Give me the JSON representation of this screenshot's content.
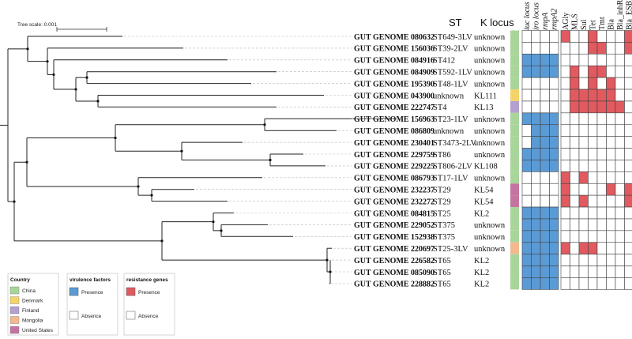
{
  "tree_scale": {
    "label": "Tree scale: 0.001"
  },
  "headers": {
    "st": "ST",
    "k_locus": "K locus"
  },
  "virulence_columns": [
    "iuc locus",
    "iro locus",
    "rmpA",
    "rmpA2"
  ],
  "resistance_columns": [
    "AGly",
    "MLS",
    "Sul",
    "Tet",
    "Tmt",
    "Bla",
    "Bla_inhR",
    "Bla_ESBL"
  ],
  "colors": {
    "China": "#a8d59a",
    "Denmark": "#f5d36b",
    "Finland": "#b4a0cf",
    "Mongolia": "#f3b98e",
    "United States": "#c474a0",
    "virulence_presence": "#5b9bd5",
    "resistance_presence": "#e05a5f",
    "absence": "#ffffff"
  },
  "genomes": [
    {
      "name": "GUT GENOME 080632",
      "st": "ST649-3LV",
      "k": "unknown",
      "country": "China",
      "vir": [
        0,
        0,
        0,
        0
      ],
      "res": [
        1,
        0,
        0,
        1,
        0,
        0,
        0,
        1
      ]
    },
    {
      "name": "GUT GENOME 156036",
      "st": "ST39-2LV",
      "k": "unknown",
      "country": "China",
      "vir": [
        0,
        0,
        0,
        0
      ],
      "res": [
        0,
        0,
        0,
        1,
        1,
        0,
        0,
        1
      ]
    },
    {
      "name": "GUT GENOME 084916",
      "st": "ST412",
      "k": "unknown",
      "country": "China",
      "vir": [
        1,
        1,
        1,
        1
      ],
      "res": [
        0,
        0,
        0,
        0,
        0,
        0,
        0,
        0
      ]
    },
    {
      "name": "GUT GENOME 084909",
      "st": "ST592-1LV",
      "k": "unknown",
      "country": "China",
      "vir": [
        1,
        1,
        1,
        1
      ],
      "res": [
        0,
        1,
        0,
        1,
        1,
        0,
        0,
        0
      ]
    },
    {
      "name": "GUT GENOME 195390",
      "st": "ST48-1LV",
      "k": "unknown",
      "country": "China",
      "vir": [
        0,
        0,
        0,
        0
      ],
      "res": [
        0,
        1,
        0,
        1,
        0,
        1,
        0,
        0
      ]
    },
    {
      "name": "GUT GENOME 043900",
      "st": "unknown",
      "k": "KL111",
      "country": "Denmark",
      "vir": [
        0,
        0,
        0,
        0
      ],
      "res": [
        0,
        1,
        1,
        1,
        1,
        1,
        0,
        0
      ]
    },
    {
      "name": "GUT GENOME 222747",
      "st": "ST4",
      "k": "KL13",
      "country": "Finland",
      "vir": [
        0,
        0,
        0,
        0
      ],
      "res": [
        0,
        1,
        1,
        1,
        1,
        1,
        1,
        0
      ]
    },
    {
      "name": "GUT GENOME 156963",
      "st": "ST23-1LV",
      "k": "unknown",
      "country": "China",
      "vir": [
        1,
        1,
        1,
        1
      ],
      "res": [
        0,
        0,
        0,
        0,
        0,
        0,
        0,
        0
      ]
    },
    {
      "name": "GUT GENOME 086809",
      "st": "unknown",
      "k": "unknown",
      "country": "China",
      "vir": [
        0,
        1,
        1,
        1
      ],
      "res": [
        0,
        0,
        0,
        0,
        0,
        0,
        0,
        0
      ]
    },
    {
      "name": "GUT GENOME 230401",
      "st": "ST3473-2LV",
      "k": "unknown",
      "country": "China",
      "vir": [
        0,
        1,
        1,
        1
      ],
      "res": [
        0,
        0,
        0,
        0,
        0,
        0,
        0,
        0
      ]
    },
    {
      "name": "GUT GENOME 229759",
      "st": "ST86",
      "k": "unknown",
      "country": "China",
      "vir": [
        1,
        1,
        1,
        1
      ],
      "res": [
        0,
        0,
        0,
        0,
        0,
        0,
        0,
        0
      ]
    },
    {
      "name": "GUT GENOME 229225",
      "st": "ST806-2LV",
      "k": "KL108",
      "country": "China",
      "vir": [
        1,
        1,
        1,
        1
      ],
      "res": [
        0,
        0,
        0,
        0,
        0,
        0,
        0,
        0
      ]
    },
    {
      "name": "GUT GENOME 086793",
      "st": "ST17-1LV",
      "k": "unknown",
      "country": "China",
      "vir": [
        0,
        0,
        0,
        0
      ],
      "res": [
        1,
        0,
        1,
        0,
        0,
        0,
        0,
        0
      ]
    },
    {
      "name": "GUT GENOME 232237",
      "st": "ST29",
      "k": "KL54",
      "country": "United States",
      "vir": [
        0,
        0,
        0,
        0
      ],
      "res": [
        1,
        0,
        0,
        0,
        0,
        1,
        0,
        1
      ]
    },
    {
      "name": "GUT GENOME 232272",
      "st": "ST29",
      "k": "KL54",
      "country": "United States",
      "vir": [
        0,
        0,
        0,
        0
      ],
      "res": [
        1,
        0,
        1,
        0,
        0,
        0,
        0,
        1
      ]
    },
    {
      "name": "GUT GENOME 084815",
      "st": "ST25",
      "k": "KL2",
      "country": "China",
      "vir": [
        1,
        1,
        1,
        1
      ],
      "res": [
        0,
        0,
        0,
        0,
        0,
        0,
        0,
        0
      ]
    },
    {
      "name": "GUT GENOME 229052",
      "st": "ST375",
      "k": "unknown",
      "country": "China",
      "vir": [
        1,
        1,
        1,
        1
      ],
      "res": [
        0,
        0,
        0,
        0,
        0,
        0,
        0,
        0
      ]
    },
    {
      "name": "GUT GENOME 152938",
      "st": "ST375",
      "k": "unknown",
      "country": "China",
      "vir": [
        1,
        1,
        1,
        1
      ],
      "res": [
        0,
        0,
        0,
        0,
        0,
        0,
        0,
        0
      ]
    },
    {
      "name": "GUT GENOME 220697",
      "st": "ST25-3LV",
      "k": "unknown",
      "country": "Mongolia",
      "vir": [
        1,
        1,
        1,
        1
      ],
      "res": [
        1,
        0,
        1,
        1,
        0,
        0,
        0,
        0
      ]
    },
    {
      "name": "GUT GENOME 226582",
      "st": "ST65",
      "k": "KL2",
      "country": "China",
      "vir": [
        1,
        1,
        1,
        1
      ],
      "res": [
        0,
        0,
        0,
        0,
        0,
        0,
        0,
        0
      ]
    },
    {
      "name": "GUT GENOME 085090",
      "st": "ST65",
      "k": "KL2",
      "country": "China",
      "vir": [
        1,
        1,
        1,
        1
      ],
      "res": [
        0,
        0,
        0,
        0,
        0,
        0,
        0,
        0
      ]
    },
    {
      "name": "GUT GENOME 228882",
      "st": "ST65",
      "k": "KL2",
      "country": "China",
      "vir": [
        1,
        1,
        1,
        1
      ],
      "res": [
        0,
        0,
        0,
        0,
        0,
        0,
        0,
        0
      ]
    }
  ],
  "legends": {
    "country": {
      "title": "Country",
      "items": [
        "China",
        "Denmark",
        "Finland",
        "Mongolia",
        "United States"
      ]
    },
    "virulence": {
      "title": "virulence factors",
      "presence": "Presence",
      "absence": "Absence"
    },
    "resistance": {
      "title": "resistance genes",
      "presence": "Presence",
      "absence": "Absence"
    }
  }
}
